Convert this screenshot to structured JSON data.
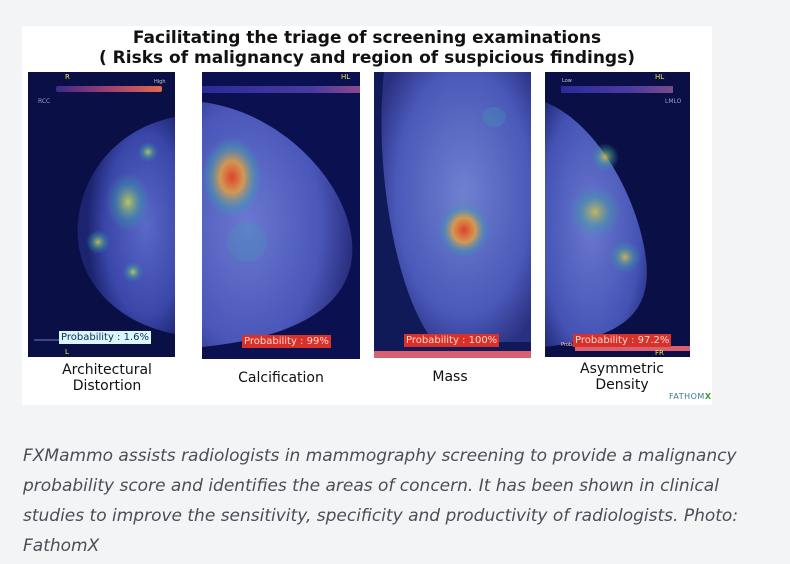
{
  "figure": {
    "title_line1": "Facilitating the triage of screening examinations",
    "title_line2": "( Risks of malignancy and region of suspicious findings)",
    "panels": [
      {
        "label_lines": [
          "Architectural",
          "Distortion"
        ],
        "probability": "Probability : 1.6%",
        "markers": {
          "top_left": "R",
          "top_right": "High",
          "bottom": "L",
          "side": "RCC"
        }
      },
      {
        "label_lines": [
          "Calcification"
        ],
        "probability": "Probability : 99%",
        "markers": {
          "top_right": "HL"
        }
      },
      {
        "label_lines": [
          "Mass"
        ],
        "probability": "Probability : 100%",
        "markers": {}
      },
      {
        "label_lines": [
          "Asymmetric",
          "Density"
        ],
        "probability": "Probability : 97.2%",
        "markers": {
          "top_left": "Low",
          "top_right": "HL",
          "bottom": "FR",
          "side": "LMLO",
          "small": "Probability"
        }
      }
    ],
    "logo": {
      "text": "FATHOM",
      "accent": "X"
    },
    "colors": {
      "heat_high": "#e0402a",
      "heat_mid": "#e6d04a",
      "tissue": "#4a58b8",
      "background": "#0a1040"
    }
  },
  "caption": {
    "lines": [
      "FXMammo assists radiologists in mammography screening to provide a malignancy",
      "probability score and identifies the areas of concern. It has been shown in clinical",
      "studies to improve the sensitivity, specificity and productivity of radiologists. Photo:",
      "FathomX"
    ]
  }
}
